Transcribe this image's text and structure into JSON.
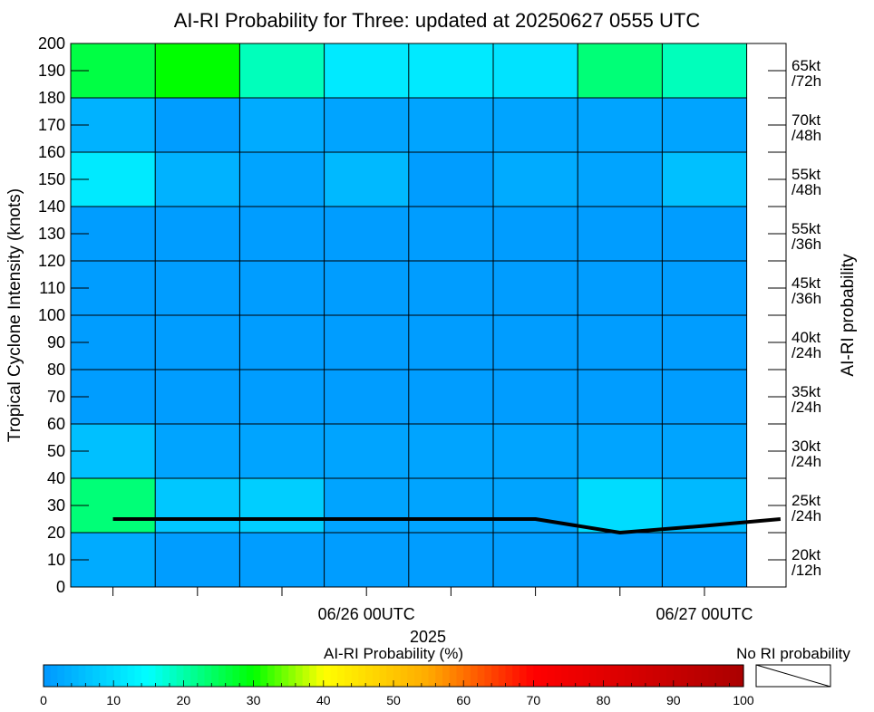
{
  "chart_data": {
    "type": "heatmap",
    "title": "AI-RI Probability for Three: updated at 20250627 0555 UTC",
    "ylabel": "Tropical Cyclone Intensity (knots)",
    "ylabel_right": "AI-RI probability",
    "xlabel": "2025",
    "ylim": [
      0,
      200
    ],
    "y_ticks": [
      "0",
      "10",
      "20",
      "30",
      "40",
      "50",
      "60",
      "70",
      "80",
      "90",
      "100",
      "110",
      "120",
      "130",
      "140",
      "150",
      "160",
      "170",
      "180",
      "190",
      "200"
    ],
    "x_tick_labels": [
      {
        "label": "06/26 00UTC",
        "column": 3.5
      },
      {
        "label": "06/27 00UTC",
        "column": 7.5
      }
    ],
    "columns": 8,
    "row_bands": [
      [
        0,
        20
      ],
      [
        20,
        40
      ],
      [
        40,
        60
      ],
      [
        60,
        80
      ],
      [
        80,
        100
      ],
      [
        100,
        120
      ],
      [
        120,
        140
      ],
      [
        140,
        160
      ],
      [
        160,
        180
      ],
      [
        180,
        200
      ]
    ],
    "right_labels": [
      [
        "20kt",
        "/12h"
      ],
      [
        "25kt",
        "/24h"
      ],
      [
        "30kt",
        "/24h"
      ],
      [
        "35kt",
        "/24h"
      ],
      [
        "40kt",
        "/24h"
      ],
      [
        "45kt",
        "/36h"
      ],
      [
        "55kt",
        "/36h"
      ],
      [
        "55kt",
        "/48h"
      ],
      [
        "70kt",
        "/48h"
      ],
      [
        "65kt",
        "/72h"
      ]
    ],
    "probabilities": [
      [
        3,
        1,
        1,
        1,
        1,
        1,
        1,
        1
      ],
      [
        23,
        7,
        8,
        2,
        2,
        2,
        10,
        5
      ],
      [
        6,
        2,
        2,
        2,
        2,
        2,
        2,
        2
      ],
      [
        1,
        1,
        1,
        1,
        1,
        1,
        1,
        1
      ],
      [
        1,
        1,
        1,
        1,
        1,
        1,
        1,
        1
      ],
      [
        1,
        1,
        1,
        1,
        1,
        1,
        1,
        1
      ],
      [
        1,
        1,
        1,
        1,
        1,
        1,
        1,
        1
      ],
      [
        12,
        4,
        2,
        5,
        1,
        3,
        2,
        6
      ],
      [
        4,
        1,
        3,
        2,
        2,
        2,
        2,
        2
      ],
      [
        26,
        30,
        19,
        12,
        12,
        11,
        23,
        19
      ]
    ],
    "intensity_line": {
      "x": [
        0.5,
        1.5,
        2.5,
        3.5,
        4.5,
        5.5,
        6.5,
        7.5,
        8.4
      ],
      "y": [
        25,
        25,
        25,
        25,
        25,
        25,
        20,
        22.5,
        25
      ]
    },
    "colorbar": {
      "label": "AI-RI Probability (%)",
      "ticks": [
        "0",
        "10",
        "20",
        "30",
        "40",
        "50",
        "60",
        "70",
        "80",
        "90",
        "100"
      ],
      "no_ri_label": "No RI probability"
    },
    "grid": true,
    "colors": {
      "low": "#0096ff",
      "cyan": "#00ffff",
      "green": "#00ff00",
      "yellow": "#ffff00",
      "red": "#ff0000",
      "high": "#aa0000",
      "line": "#000000"
    }
  }
}
